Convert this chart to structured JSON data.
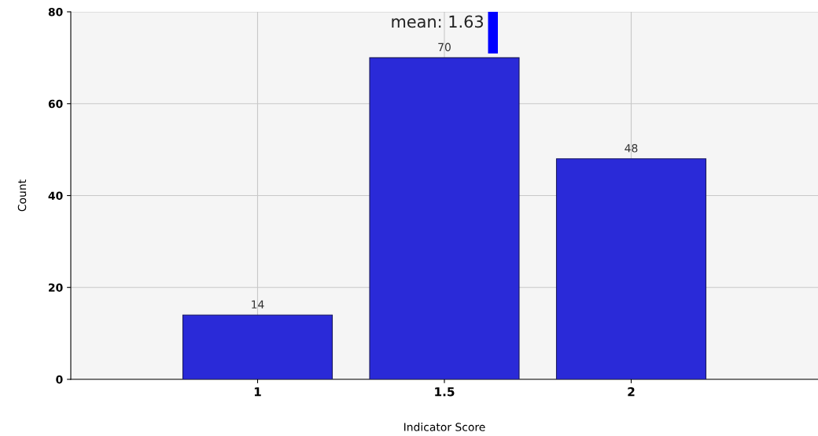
{
  "chart_data": {
    "type": "bar",
    "xlabel": "Indicator Score",
    "ylabel": "Count",
    "x": [
      1,
      1.5,
      2
    ],
    "values": [
      14,
      70,
      48
    ],
    "color": "#2a2ad8",
    "xlim": [
      0.5,
      2.5
    ],
    "xticks": [
      1,
      1.5,
      2
    ],
    "ylim": [
      0,
      80
    ],
    "yticks": [
      0,
      20,
      40,
      60,
      80
    ],
    "grid": true,
    "data_labels": true,
    "ref_lines": [
      {
        "axis": "x",
        "value": 1.63,
        "label": "mean: 1.63",
        "color": "#0000ff"
      }
    ]
  }
}
